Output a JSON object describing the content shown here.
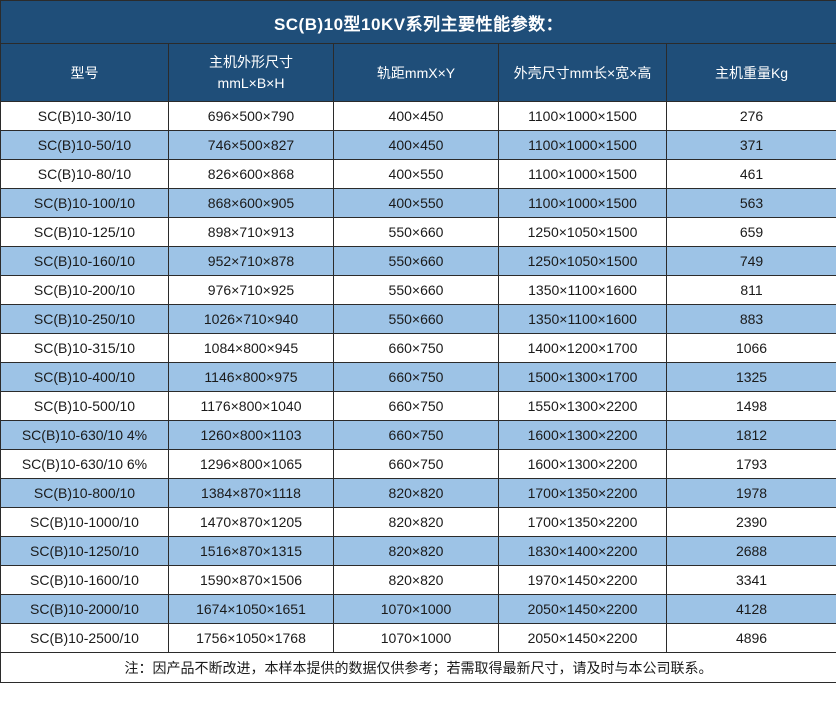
{
  "title": "SC(B)10型10KV系列主要性能参数：",
  "colors": {
    "header_bg": "#1F4E79",
    "row_alt_bg": "#9DC3E6",
    "row_bg": "#FFFFFF",
    "border": "#2B2B2B",
    "header_text": "#FFFFFF",
    "body_text": "#1A1A1A"
  },
  "table": {
    "columns": [
      {
        "label": "型号"
      },
      {
        "label": "主机外形尺寸",
        "sublabel": "mmL×B×H"
      },
      {
        "label": "轨距mmX×Y"
      },
      {
        "label": "外壳尺寸mm长×宽×高"
      },
      {
        "label": "主机重量Kg"
      }
    ],
    "rows": [
      [
        "SC(B)10-30/10",
        "696×500×790",
        "400×450",
        "1100×1000×1500",
        276
      ],
      [
        "SC(B)10-50/10",
        "746×500×827",
        "400×450",
        "1100×1000×1500",
        371
      ],
      [
        "SC(B)10-80/10",
        "826×600×868",
        "400×550",
        "1100×1000×1500",
        461
      ],
      [
        "SC(B)10-100/10",
        "868×600×905",
        "400×550",
        "1100×1000×1500",
        563
      ],
      [
        "SC(B)10-125/10",
        "898×710×913",
        "550×660",
        "1250×1050×1500",
        659
      ],
      [
        "SC(B)10-160/10",
        "952×710×878",
        "550×660",
        "1250×1050×1500",
        749
      ],
      [
        "SC(B)10-200/10",
        "976×710×925",
        "550×660",
        "1350×1100×1600",
        811
      ],
      [
        "SC(B)10-250/10",
        "1026×710×940",
        "550×660",
        "1350×1100×1600",
        883
      ],
      [
        "SC(B)10-315/10",
        "1084×800×945",
        "660×750",
        "1400×1200×1700",
        1066
      ],
      [
        "SC(B)10-400/10",
        "1146×800×975",
        "660×750",
        "1500×1300×1700",
        1325
      ],
      [
        "SC(B)10-500/10",
        "1176×800×1040",
        "660×750",
        "1550×1300×2200",
        1498
      ],
      [
        "SC(B)10-630/10 4%",
        "1260×800×1103",
        "660×750",
        "1600×1300×2200",
        1812
      ],
      [
        "SC(B)10-630/10 6%",
        "1296×800×1065",
        "660×750",
        "1600×1300×2200",
        1793
      ],
      [
        "SC(B)10-800/10",
        "1384×870×1118",
        "820×820",
        "1700×1350×2200",
        1978
      ],
      [
        "SC(B)10-1000/10",
        "1470×870×1205",
        "820×820",
        "1700×1350×2200",
        2390
      ],
      [
        "SC(B)10-1250/10",
        "1516×870×1315",
        "820×820",
        "1830×1400×2200",
        2688
      ],
      [
        "SC(B)10-1600/10",
        "1590×870×1506",
        "820×820",
        "1970×1450×2200",
        3341
      ],
      [
        "SC(B)10-2000/10",
        "1674×1050×1651",
        "1070×1000",
        "2050×1450×2200",
        4128
      ],
      [
        "SC(B)10-2500/10",
        "1756×1050×1768",
        "1070×1000",
        "2050×1450×2200",
        4896
      ]
    ]
  },
  "footer": {
    "note": "注：因产品不断改进，本样本提供的数据仅供参考；若需取得最新尺寸，请及时与本公司联系。"
  }
}
